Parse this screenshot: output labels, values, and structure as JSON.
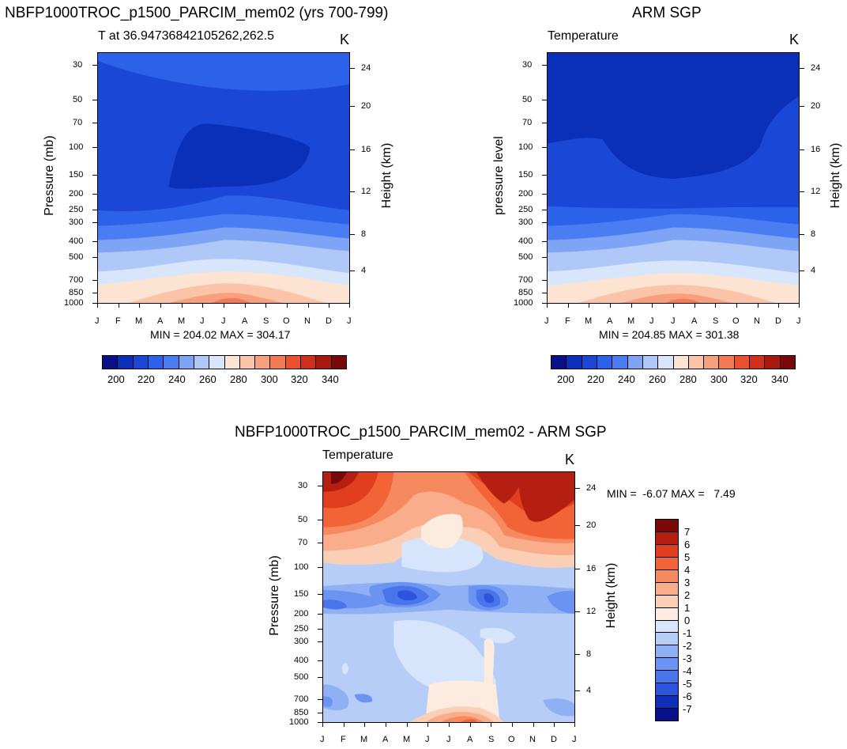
{
  "chart_data": [
    {
      "type": "heatmap",
      "title": "NBFP1000TROC_p1500_PARCIM_mem02 (yrs 700-799)",
      "subtitle_left": "T at 36.94736842105262,262.5",
      "subtitle_right": "K",
      "ylabel": "Pressure (mb)",
      "ylabel_right": "Height (km)",
      "x_ticks": [
        "J",
        "F",
        "M",
        "A",
        "M",
        "J",
        "J",
        "A",
        "S",
        "O",
        "N",
        "D",
        "J"
      ],
      "y_ticks": [
        "30",
        "50",
        "70",
        "100",
        "150",
        "200",
        "250",
        "300",
        "400",
        "500",
        "700",
        "850",
        "1000"
      ],
      "y_right_ticks": [
        "24",
        "20",
        "16",
        "12",
        "8",
        "4"
      ],
      "stats": "MIN = 204.02 MAX = 304.17",
      "colorbar_labels": [
        "200",
        "220",
        "240",
        "260",
        "280",
        "300",
        "320",
        "340"
      ],
      "ylim": [
        1000,
        25
      ],
      "approx_profile_K": {
        "pressure_mb": [
          30,
          100,
          200,
          300,
          500,
          700,
          850,
          1000
        ],
        "temperature": [
          220,
          208,
          213,
          235,
          255,
          270,
          285,
          295
        ]
      }
    },
    {
      "type": "heatmap",
      "title": "ARM SGP",
      "subtitle_left": "Temperature",
      "subtitle_right": "K",
      "ylabel": "pressure level",
      "ylabel_right": "Height (km)",
      "x_ticks": [
        "J",
        "F",
        "M",
        "A",
        "M",
        "J",
        "J",
        "A",
        "S",
        "O",
        "N",
        "D",
        "J"
      ],
      "y_ticks": [
        "30",
        "50",
        "70",
        "100",
        "150",
        "200",
        "250",
        "300",
        "400",
        "500",
        "700",
        "850",
        "1000"
      ],
      "y_right_ticks": [
        "24",
        "20",
        "16",
        "12",
        "8",
        "4"
      ],
      "stats": "MIN = 204.85 MAX = 301.38",
      "colorbar_labels": [
        "200",
        "220",
        "240",
        "260",
        "280",
        "300",
        "320",
        "340"
      ],
      "ylim": [
        1000,
        25
      ],
      "approx_profile_K": {
        "pressure_mb": [
          30,
          100,
          200,
          300,
          500,
          700,
          850,
          1000
        ],
        "temperature": [
          215,
          210,
          215,
          235,
          255,
          270,
          285,
          295
        ]
      }
    },
    {
      "type": "heatmap",
      "title": "NBFP1000TROC_p1500_PARCIM_mem02 - ARM SGP",
      "subtitle_left": "Temperature",
      "subtitle_right": "K",
      "ylabel": "Pressure (mb)",
      "ylabel_right": "Height (km)",
      "x_ticks": [
        "J",
        "F",
        "M",
        "A",
        "M",
        "J",
        "J",
        "A",
        "S",
        "O",
        "N",
        "D",
        "J"
      ],
      "y_ticks": [
        "30",
        "50",
        "70",
        "100",
        "150",
        "200",
        "250",
        "300",
        "400",
        "500",
        "700",
        "850",
        "1000"
      ],
      "y_right_ticks": [
        "24",
        "20",
        "16",
        "12",
        "8",
        "4"
      ],
      "stats": "MIN =  -6.07 MAX =   7.49",
      "colorbar_labels": [
        "7",
        "6",
        "5",
        "4",
        "3",
        "2",
        "1",
        "0",
        "-1",
        "-2",
        "-3",
        "-4",
        "-5",
        "-6",
        "-7"
      ],
      "ylim": [
        1000,
        25
      ]
    }
  ],
  "colors": {
    "abs_scale": [
      "#08108a",
      "#0a2fb8",
      "#1a47d6",
      "#2c61ea",
      "#4b7df2",
      "#7ea4f5",
      "#b0c8f8",
      "#d8e6fb",
      "#fde3d2",
      "#fbc3a7",
      "#f8a07d",
      "#f37a55",
      "#e9512f",
      "#d0301b",
      "#a8180f",
      "#7a0808"
    ],
    "diff_scale": [
      "#7a0808",
      "#b41f12",
      "#e03e1c",
      "#f26438",
      "#f7895f",
      "#f9ad8b",
      "#fbcfb5",
      "#fdebe0",
      "#d6e5fb",
      "#b6cdf8",
      "#8fb0f5",
      "#6b93f1",
      "#4a75ea",
      "#2c54dc",
      "#0f2fb8",
      "#08108a"
    ]
  }
}
